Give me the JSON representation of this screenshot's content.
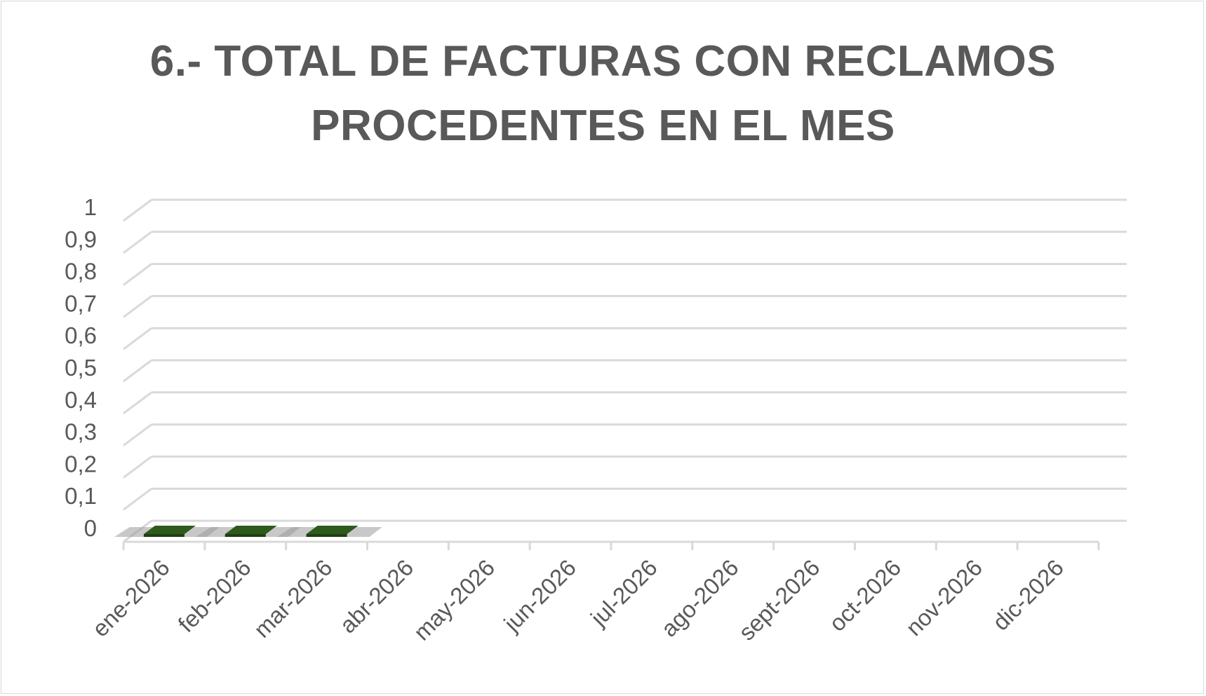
{
  "chart_data": {
    "type": "bar",
    "title_lines": [
      "6.- TOTAL DE FACTURAS CON RECLAMOS",
      "PROCEDENTES EN EL MES"
    ],
    "categories": [
      "ene-2026",
      "feb-2026",
      "mar-2026",
      "abr-2026",
      "may-2026",
      "jun-2026",
      "jul-2026",
      "ago-2026",
      "sept-2026",
      "oct-2026",
      "nov-2026",
      "dic-2026"
    ],
    "values": [
      0,
      0,
      0,
      null,
      null,
      null,
      null,
      null,
      null,
      null,
      null,
      null
    ],
    "ylim": [
      0,
      1
    ],
    "yticks": [
      "0",
      "0,1",
      "0,2",
      "0,3",
      "0,4",
      "0,5",
      "0,6",
      "0,7",
      "0,8",
      "0,9",
      "1"
    ],
    "grid": true,
    "legend": "none",
    "bar_color": "#2e5a1c",
    "grid_color": "#d9d9d9",
    "text_color": "#595959"
  }
}
